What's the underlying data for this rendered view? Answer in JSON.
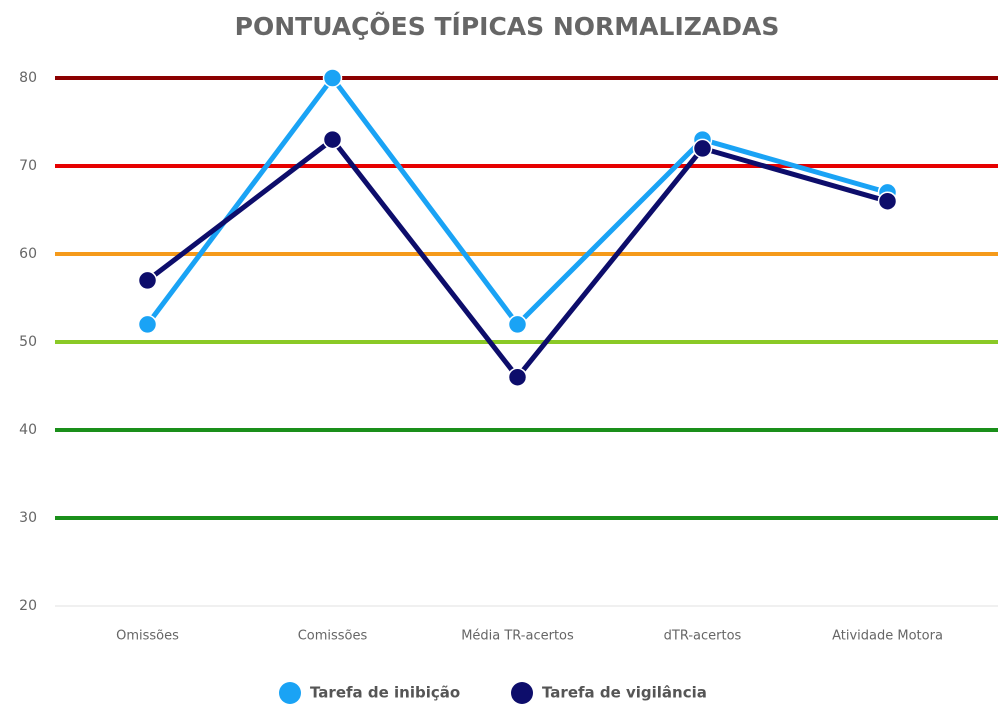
{
  "chart_data": {
    "type": "line",
    "title": "PONTUAÇÕES TÍPICAS NORMALIZADAS",
    "categories": [
      "Omissões",
      "Comissões",
      "Média TR-acertos",
      "dTR-acertos",
      "Atividade Motora"
    ],
    "series": [
      {
        "name": "Tarefa de inibição",
        "color": "#1aa3f5",
        "values": [
          52,
          80,
          52,
          73,
          67
        ]
      },
      {
        "name": "Tarefa de vigilância",
        "color": "#0d0d6b",
        "values": [
          57,
          73,
          46,
          72,
          66
        ]
      }
    ],
    "ylim": [
      20,
      80
    ],
    "yticks": [
      20,
      30,
      40,
      50,
      60,
      70,
      80
    ],
    "grid": true,
    "grid_colors": [
      "#e0e0e0",
      "#1a8f1a",
      "#1a8f1a",
      "#8ac926",
      "#f59a1a",
      "#e60000",
      "#8b0000"
    ],
    "legend": "bottom"
  }
}
